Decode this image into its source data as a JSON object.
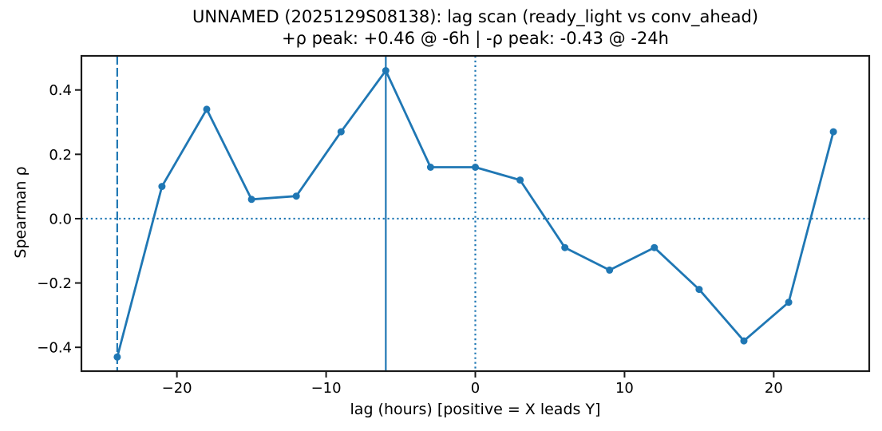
{
  "chart_data": {
    "type": "line",
    "title": "UNNAMED (2025129S08138): lag scan (ready_light vs conv_ahead)",
    "subtitle": "+ρ peak: +0.46 @ -6h | -ρ peak: -0.43 @ -24h",
    "xlabel": "lag (hours) [positive = X leads Y]",
    "ylabel": "Spearman ρ",
    "x": [
      -24,
      -21,
      -18,
      -15,
      -12,
      -9,
      -6,
      -3,
      0,
      3,
      6,
      9,
      12,
      15,
      18,
      21,
      24
    ],
    "y": [
      -0.43,
      0.1,
      0.34,
      0.06,
      0.07,
      0.27,
      0.46,
      0.16,
      0.16,
      0.12,
      -0.09,
      -0.16,
      -0.09,
      -0.22,
      -0.38,
      -0.26,
      0.27
    ],
    "xlim": [
      -26.4,
      26.4
    ],
    "ylim": [
      -0.474,
      0.506
    ],
    "xticks": {
      "values": [
        -20,
        -10,
        0,
        10,
        20
      ],
      "labels": [
        "−20",
        "−10",
        "0",
        "10",
        "20"
      ]
    },
    "yticks": {
      "values": [
        0.4,
        0.2,
        0.0,
        -0.2,
        -0.4
      ],
      "labels": [
        "0.4",
        "0.2",
        "0.0",
        "−0.2",
        "−0.4"
      ]
    },
    "line_color": "#1f77b4",
    "marker": "circle",
    "grid": false,
    "pos_peak": {
      "rho": "+0.46",
      "lag_hours": -6
    },
    "neg_peak": {
      "rho": "-0.43",
      "lag_hours": -24
    },
    "reference_lines": [
      {
        "orientation": "vertical",
        "value": -24,
        "style": "dashed",
        "color": "#1f77b4"
      },
      {
        "orientation": "vertical",
        "value": -6,
        "style": "solid",
        "color": "#1f77b4"
      },
      {
        "orientation": "vertical",
        "value": 0,
        "style": "dotted",
        "color": "#1f77b4"
      },
      {
        "orientation": "horizontal",
        "value": 0,
        "style": "dotted",
        "color": "#1f77b4"
      }
    ]
  }
}
